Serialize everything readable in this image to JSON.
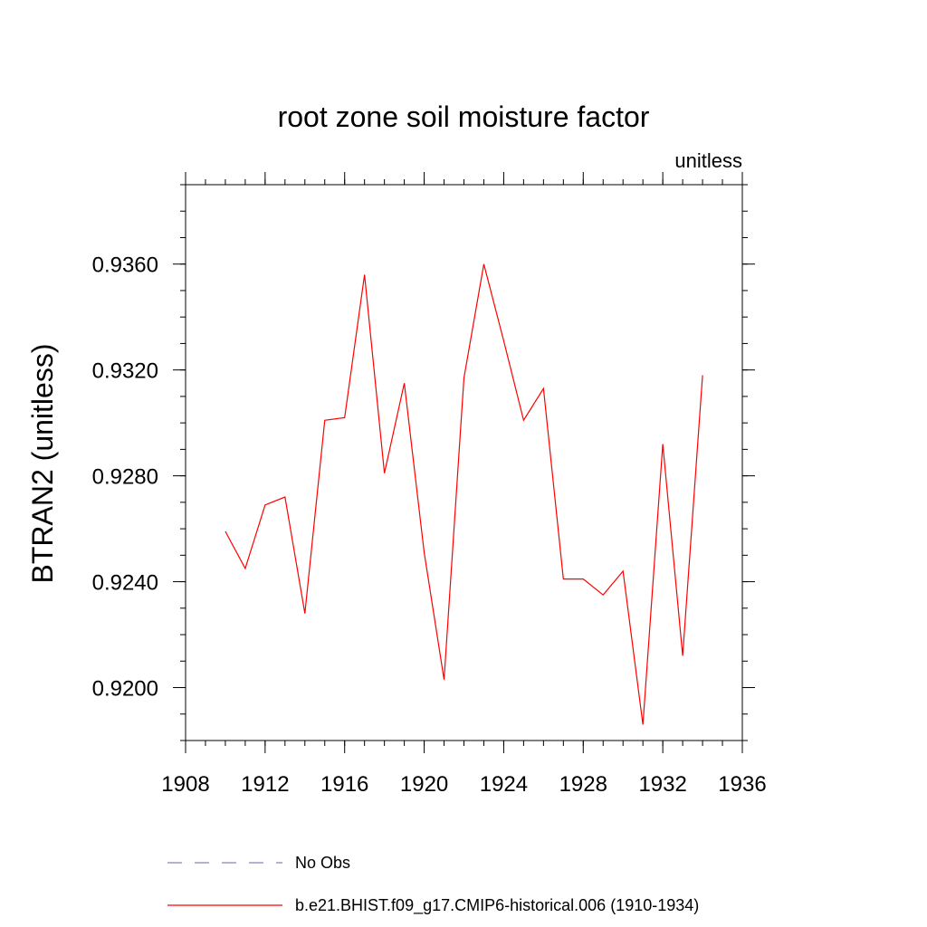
{
  "chart_data": {
    "type": "line",
    "title": "root zone soil moisture factor",
    "subtitle": "unitless",
    "xlabel": "",
    "ylabel": "BTRAN2  (unitless)",
    "xlim": [
      1908,
      1936
    ],
    "ylim": [
      0.918,
      0.939
    ],
    "x_ticks": [
      1908,
      1912,
      1916,
      1920,
      1924,
      1928,
      1932,
      1936
    ],
    "x_minor_step": 1,
    "y_ticks": [
      0.92,
      0.924,
      0.928,
      0.932,
      0.936
    ],
    "y_tick_labels": [
      "0.9200",
      "0.9240",
      "0.9280",
      "0.9320",
      "0.9360"
    ],
    "y_minor_step": 0.001,
    "grid": false,
    "legend_position": "bottom",
    "series": [
      {
        "name": "No Obs",
        "color": "#8a7fc0",
        "style": "dashed",
        "x": [],
        "values": []
      },
      {
        "name": "b.e21.BHIST.f09_g17.CMIP6-historical.006 (1910-1934)",
        "color": "#ff0000",
        "style": "solid",
        "x": [
          1910,
          1911,
          1912,
          1913,
          1914,
          1915,
          1916,
          1917,
          1918,
          1919,
          1920,
          1921,
          1922,
          1923,
          1924,
          1925,
          1926,
          1927,
          1928,
          1929,
          1930,
          1931,
          1932,
          1933,
          1934
        ],
        "values": [
          0.9259,
          0.9245,
          0.9269,
          0.9272,
          0.9228,
          0.9301,
          0.9302,
          0.9356,
          0.9281,
          0.9315,
          0.9251,
          0.9203,
          0.9317,
          0.936,
          0.9331,
          0.9301,
          0.9313,
          0.9241,
          0.9241,
          0.9235,
          0.9244,
          0.9186,
          0.9292,
          0.9212,
          0.9318
        ]
      }
    ]
  }
}
